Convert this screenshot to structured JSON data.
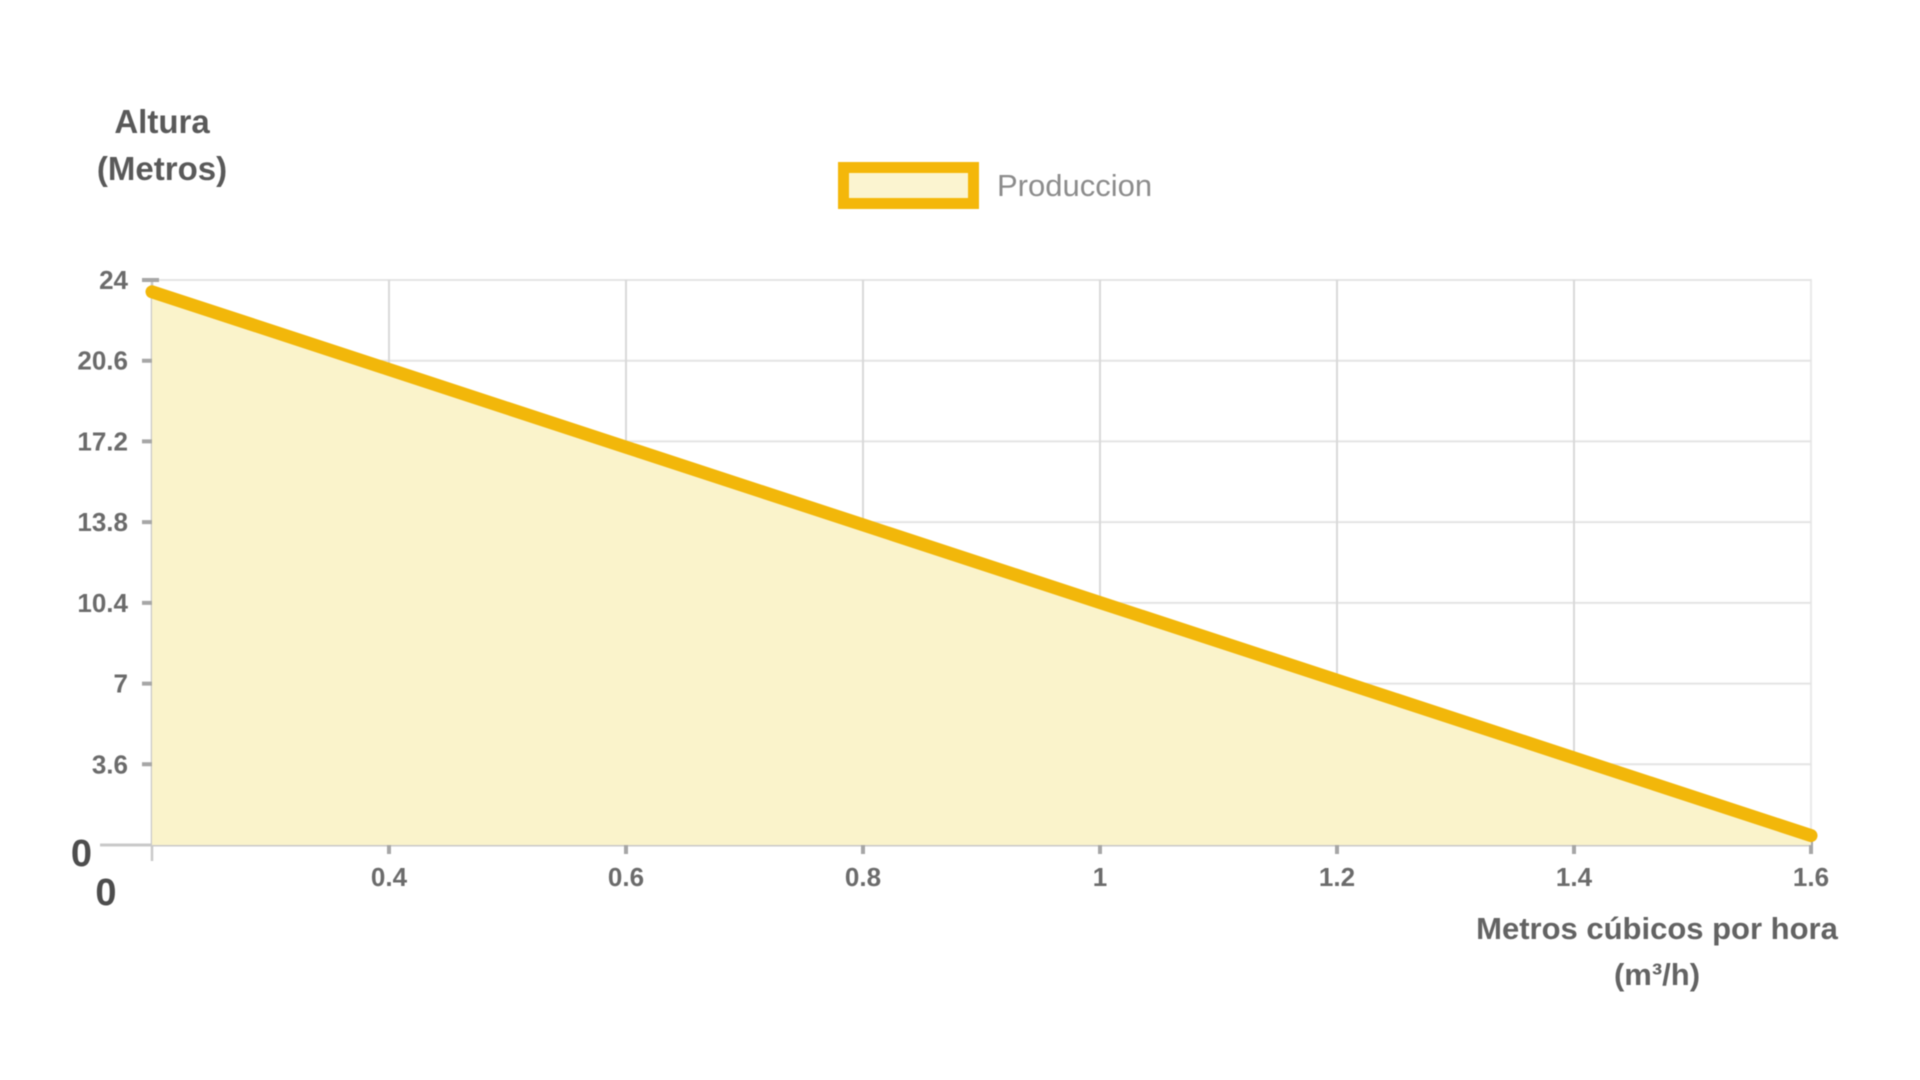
{
  "y_axis": {
    "title_line1": "Altura",
    "title_line2": "(Metros)",
    "min": 0,
    "max": 24,
    "tick_labels": [
      "24",
      "20.6",
      "17.2",
      "13.8",
      "10.4",
      "7",
      "3.6",
      "0"
    ],
    "tick_values": [
      24,
      20.6,
      17.2,
      13.8,
      10.4,
      7,
      3.6,
      0
    ]
  },
  "x_axis": {
    "title_line1": "Metros cúbicos por hora",
    "title_line2": "(m³/h)",
    "tick_labels": [
      "0",
      "0.4",
      "0.6",
      "0.8",
      "1",
      "1.2",
      "1.4",
      "1.6"
    ]
  },
  "legend": {
    "items": [
      {
        "label": "Produccion",
        "swatch_fill": "#FBF4D0",
        "swatch_border": "#F4B70A"
      }
    ]
  },
  "chart_data": {
    "type": "area",
    "title": "",
    "categories": [
      0,
      0.4,
      0.6,
      0.8,
      1,
      1.2,
      1.4,
      1.6
    ],
    "series": [
      {
        "name": "Produccion",
        "values": [
          23.5,
          20.2,
          16.9,
          13.6,
          10.3,
          7.0,
          3.7,
          0.4
        ],
        "line_color": "#F2B70A",
        "fill_color": "#FAF3CB"
      }
    ],
    "xlabel": "Metros cúbicos por hora (m³/h)",
    "ylabel": "Altura (Metros)",
    "ylim": [
      0,
      24
    ],
    "x_tick_labels": [
      "0",
      "0.4",
      "0.6",
      "0.8",
      "1",
      "1.2",
      "1.4",
      "1.6"
    ],
    "y_tick_labels": [
      "24",
      "20.6",
      "17.2",
      "13.8",
      "10.4",
      "7",
      "3.6",
      "0"
    ],
    "grid": true,
    "legend_position": "top-center",
    "x_axis_style": "category-evenly-spaced"
  },
  "colors": {
    "grid_horizontal": "#E4E4E4",
    "grid_vertical": "#D9D9D9",
    "plot_border": "#E9E9E9",
    "axis_line": "#C9C9C9",
    "tick_mark": "#A6A6A6",
    "tick_label": "#6B6B6B",
    "tick_label_strong": "#4D4D4D",
    "axis_title": "#595959",
    "legend_text": "#8C8C8C"
  }
}
